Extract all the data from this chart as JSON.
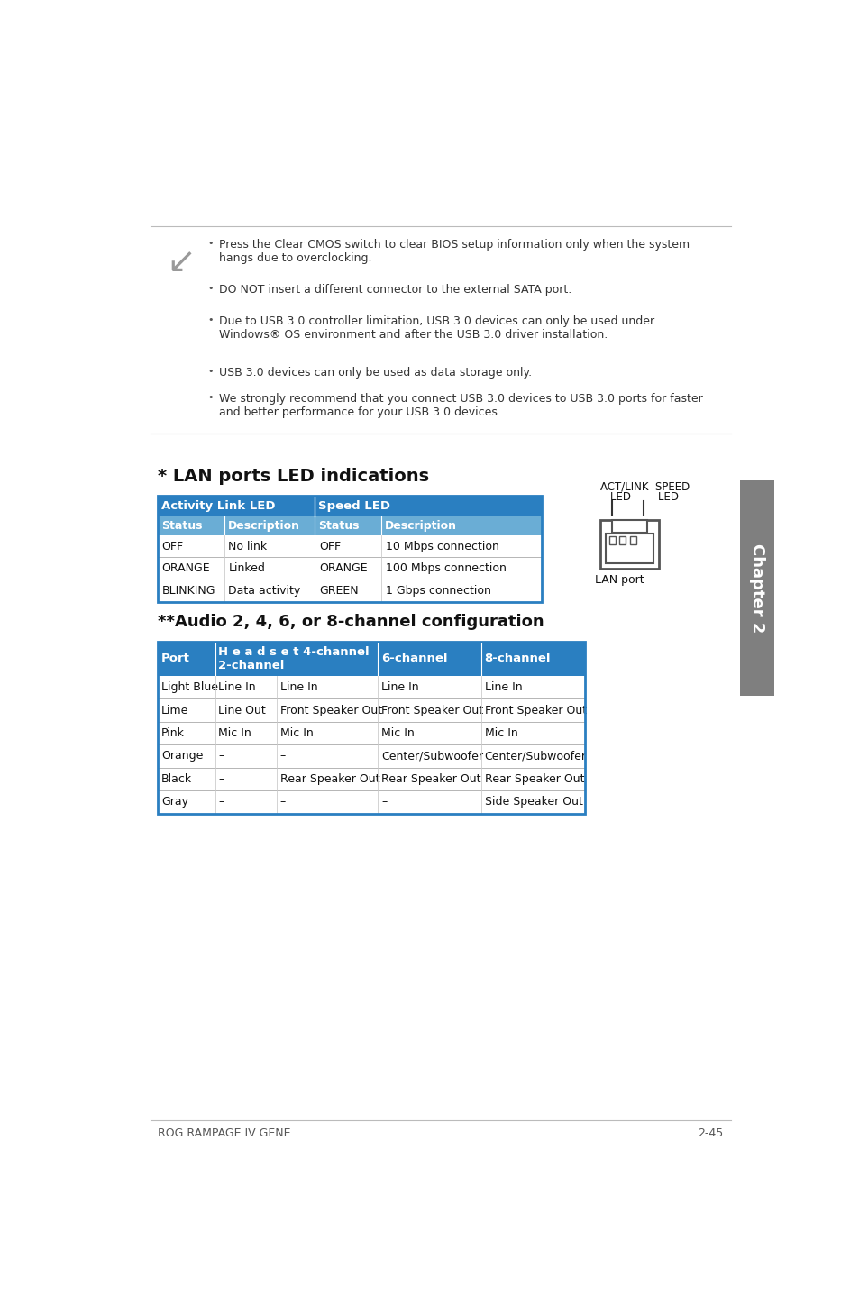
{
  "page_bg": "#ffffff",
  "note_bullets": [
    "Press the Clear CMOS switch to clear BIOS setup information only when the system\nhangs due to overclocking.",
    "DO NOT insert a different connector to the external SATA port.",
    "Due to USB 3.0 controller limitation, USB 3.0 devices can only be used under\nWindows® OS environment and after the USB 3.0 driver installation.",
    "USB 3.0 devices can only be used as data storage only.",
    "We strongly recommend that you connect USB 3.0 devices to USB 3.0 ports for faster\nand better performance for your USB 3.0 devices."
  ],
  "chapter_tab_color": "#7f7f7f",
  "chapter_text": "Chapter 2",
  "lan_title": "* LAN ports LED indications",
  "lan_table_header_color": "#2a7fc1",
  "lan_table_subheader_color": "#6aadd5",
  "lan_table_border_color": "#2a7fc1",
  "lan_row_divider_color": "#aaaaaa",
  "lan_header1": "Activity Link LED",
  "lan_header2": "Speed LED",
  "lan_subheaders": [
    "Status",
    "Description",
    "Status",
    "Description"
  ],
  "lan_rows": [
    [
      "OFF",
      "No link",
      "OFF",
      "10 Mbps connection"
    ],
    [
      "ORANGE",
      "Linked",
      "ORANGE",
      "100 Mbps connection"
    ],
    [
      "BLINKING",
      "Data activity",
      "GREEN",
      "1 Gbps connection"
    ]
  ],
  "audio_title": "**Audio 2, 4, 6, or 8-channel configuration",
  "audio_table_header_color": "#2a7fc1",
  "audio_table_border_color": "#2a7fc1",
  "audio_row_divider_color": "#aaaaaa",
  "audio_col1_header": "Port",
  "audio_col2_header": "H e a d s e t 4-channel\n2-channel",
  "audio_col3_header": "6-channel",
  "audio_col4_header": "8-channel",
  "audio_rows": [
    [
      "Light Blue",
      "Line In",
      "Line In",
      "Line In",
      "Line In"
    ],
    [
      "Lime",
      "Line Out",
      "Front Speaker Out",
      "Front Speaker Out",
      "Front Speaker Out"
    ],
    [
      "Pink",
      "Mic In",
      "Mic In",
      "Mic In",
      "Mic In"
    ],
    [
      "Orange",
      "–",
      "–",
      "Center/Subwoofer",
      "Center/Subwoofer"
    ],
    [
      "Black",
      "–",
      "Rear Speaker Out",
      "Rear Speaker Out",
      "Rear Speaker Out"
    ],
    [
      "Gray",
      "–",
      "–",
      "–",
      "Side Speaker Out"
    ]
  ],
  "footer_left": "ROG RAMPAGE IV GENE",
  "footer_right": "2-45",
  "lan_port_label": "LAN port",
  "act_link_led": "ACT/LINK  SPEED",
  "led_label": "   LED        LED"
}
